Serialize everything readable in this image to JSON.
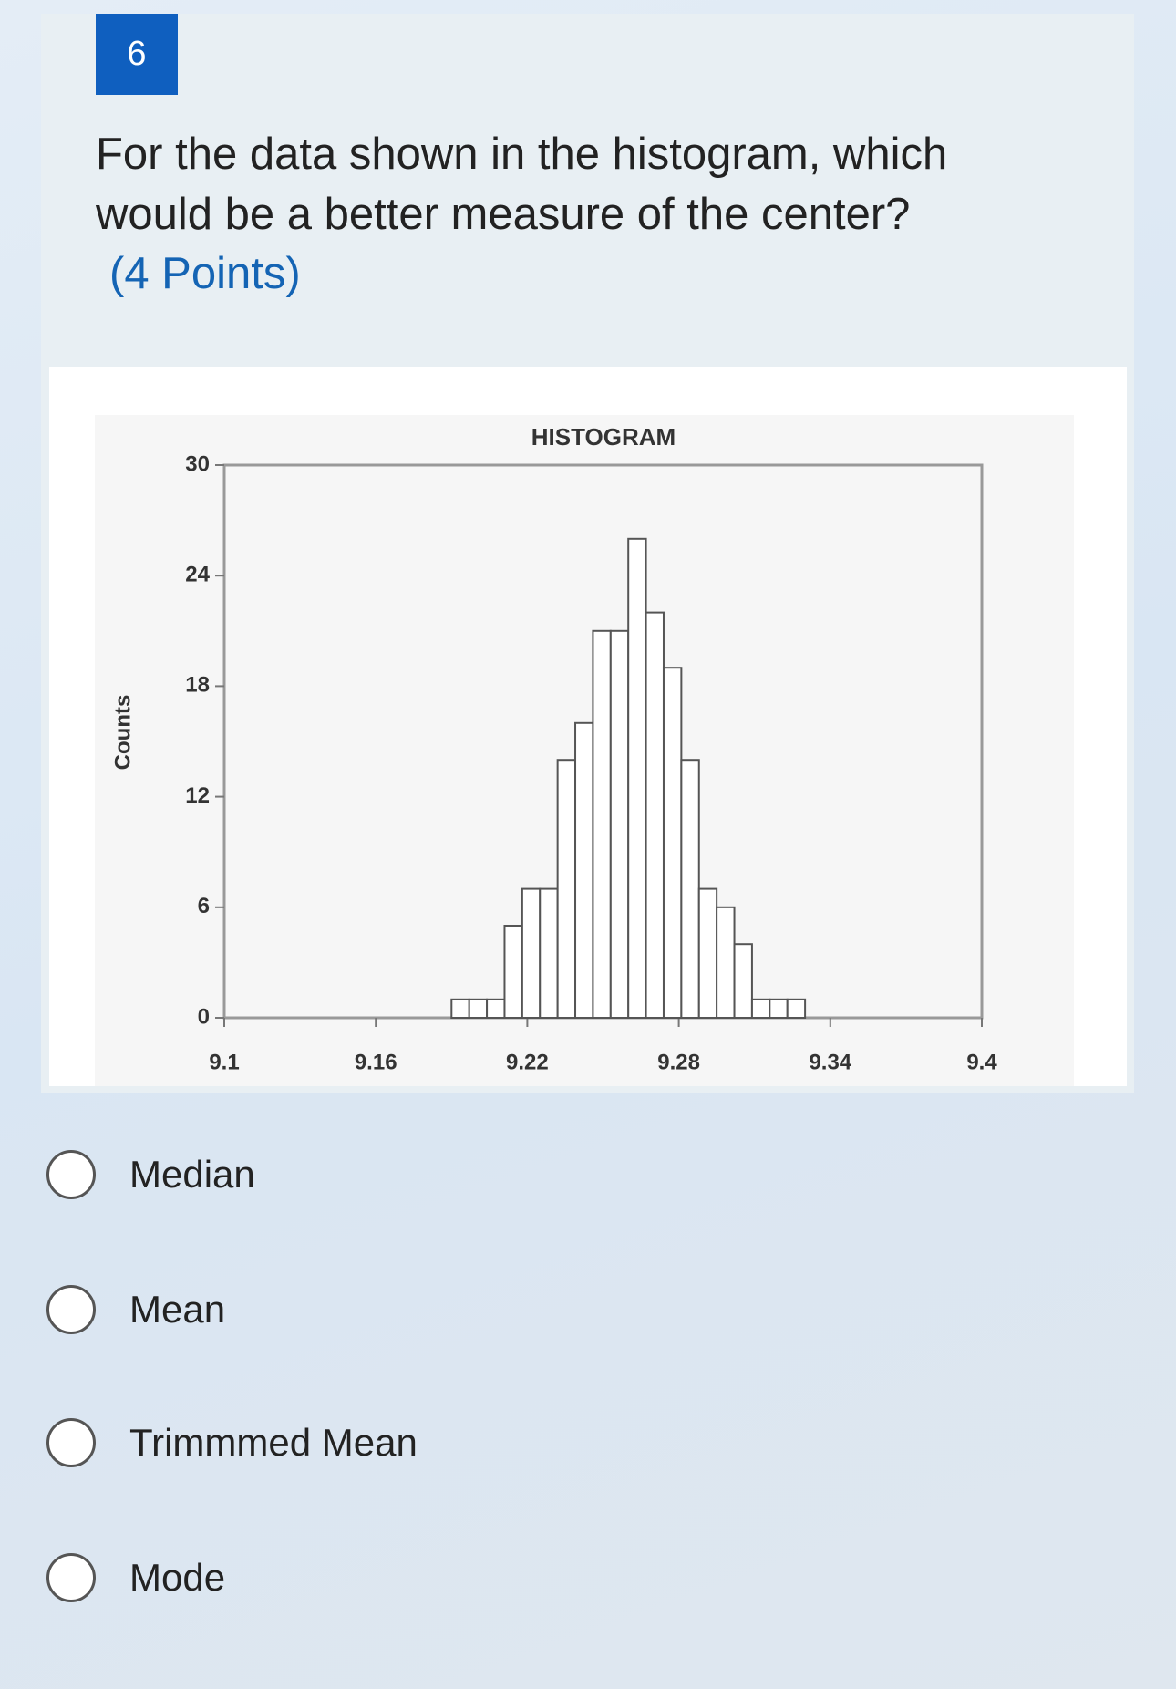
{
  "question": {
    "number": "6",
    "text": "For the data shown in the histogram, which would be a better measure of the center?",
    "points": "(4 Points)"
  },
  "chart_data": {
    "type": "histogram",
    "title": "HISTOGRAM",
    "y_label": "Counts",
    "bins": [
      9.19,
      9.197,
      9.204,
      9.211,
      9.218,
      9.225,
      9.232,
      9.239,
      9.246,
      9.253,
      9.26,
      9.267,
      9.274,
      9.281,
      9.288,
      9.295,
      9.302,
      9.309,
      9.316,
      9.323,
      9.33
    ],
    "values": [
      1,
      1,
      1,
      5,
      7,
      7,
      14,
      16,
      21,
      21,
      26,
      22,
      19,
      14,
      7,
      6,
      4,
      1,
      1,
      1
    ],
    "color": "#ffffff",
    "xlim": [
      9.1,
      9.4
    ],
    "xticks": [
      9.1,
      9.16,
      9.22,
      9.28,
      9.34,
      9.4
    ],
    "ylim": [
      0,
      30
    ],
    "yticks": [
      0,
      6,
      12,
      18,
      24,
      30
    ]
  },
  "options": [
    "Median",
    "Mean",
    "Trimmmed Mean",
    "Mode"
  ]
}
